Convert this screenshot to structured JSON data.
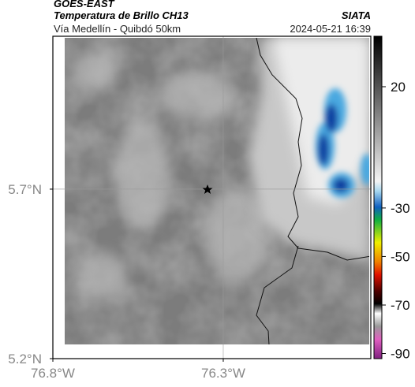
{
  "header": {
    "satellite": "GOES-EAST",
    "product": "Temperatura de Brillo CH13",
    "route": "Vía Medellín - Quibdó 50km",
    "source": "SIATA",
    "timestamp": "2024-05-21 16:39"
  },
  "map": {
    "xlim": [
      -76.8,
      -75.867
    ],
    "ylim": [
      5.2,
      6.151
    ],
    "xticks": [
      {
        "value": -76.8,
        "label": "76.8°W"
      },
      {
        "value": -76.3,
        "label": "76.3°W"
      }
    ],
    "yticks": [
      {
        "value": 5.7,
        "label": "5.7°N"
      },
      {
        "value": 5.2,
        "label": "5.2°N"
      }
    ],
    "grid": true
  },
  "colorbar": {
    "lim": [
      -92.1,
      40.8
    ],
    "ticks": [
      20,
      -30,
      -50,
      -70,
      -90
    ]
  }
}
